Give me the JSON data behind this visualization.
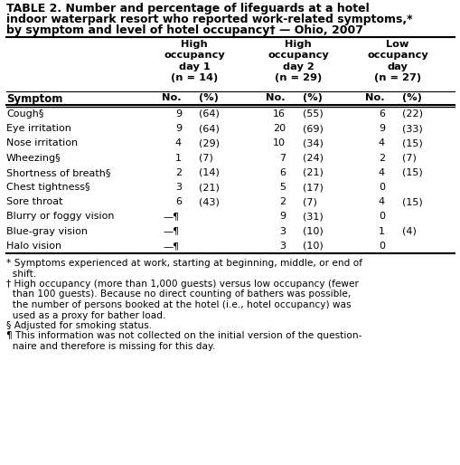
{
  "title_line1": "TABLE 2. Number and percentage of lifeguards at a hotel",
  "title_line2": "indoor waterpark resort who reported work-related symptoms,*",
  "title_line3": "by symptom and level of hotel occupancy† — Ohio, 2007",
  "col_headers": [
    "High\noccupancy\nday 1\n(n = 14)",
    "High\noccupancy\nday 2\n(n = 29)",
    "Low\noccupancy\nday\n(n = 27)"
  ],
  "row_label_header": "Symptom",
  "subheader": "No.   (%)",
  "symptoms": [
    "Cough§",
    "Eye irritation",
    "Nose irritation",
    "Wheezing§",
    "Shortness of breath§",
    "Chest tightness§",
    "Sore throat",
    "Blurry or foggy vision",
    "Blue-gray vision",
    "Halo vision"
  ],
  "data_num": [
    "9",
    "9",
    "4",
    "1",
    "2",
    "3",
    "6",
    "—¶",
    "—¶",
    "—¶"
  ],
  "data_pct": [
    "(64)",
    "(64)",
    "(29)",
    "(7)",
    "(14)",
    "(21)",
    "(43)",
    "",
    "",
    ""
  ],
  "data2_num": [
    "16",
    "20",
    "10",
    "7",
    "6",
    "5",
    "2",
    "9",
    "3",
    "3"
  ],
  "data2_pct": [
    "(55)",
    "(69)",
    "(34)",
    "(24)",
    "(21)",
    "(17)",
    "(7)",
    "(31)",
    "(10)",
    "(10)"
  ],
  "data3_num": [
    "6",
    "9",
    "4",
    "2",
    "4",
    "0",
    "4",
    "0",
    "1",
    "0"
  ],
  "data3_pct": [
    "(22)",
    "(33)",
    "(15)",
    "(7)",
    "(15)",
    "",
    "(15)",
    "",
    "(4)",
    ""
  ],
  "footnote1": "* Symptoms experienced at work, starting at beginning, middle, or end of",
  "footnote1b": "  shift.",
  "footnote2": "† High occupancy (more than 1,000 guests) versus low occupancy (fewer",
  "footnote2b": "  than 100 guests). Because no direct counting of bathers was possible,",
  "footnote2c": "  the number of persons booked at the hotel (i.e., hotel occupancy) was",
  "footnote2d": "  used as a proxy for bather load.",
  "footnote3": "§ Adjusted for smoking status.",
  "footnote4": "¶ This information was not collected on the initial version of the question-",
  "footnote4b": "  naire and therefore is missing for this day.",
  "bg_color": "#ffffff",
  "text_color": "#000000"
}
